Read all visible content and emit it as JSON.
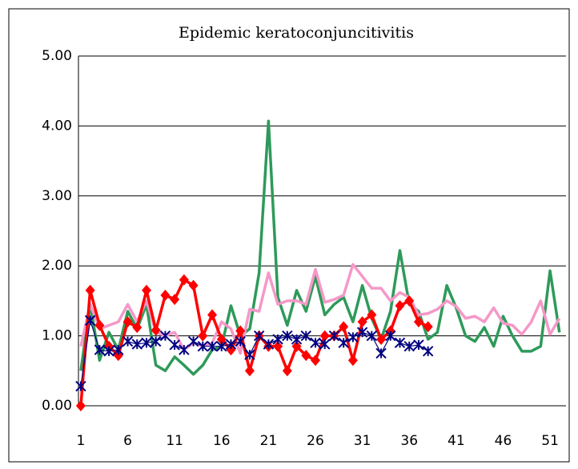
{
  "chart_data": {
    "type": "line",
    "title": "Epidemic keratoconjuncitivitis",
    "x": [
      1,
      2,
      3,
      4,
      5,
      6,
      7,
      8,
      9,
      10,
      11,
      12,
      13,
      14,
      15,
      16,
      17,
      18,
      19,
      20,
      21,
      22,
      23,
      24,
      25,
      26,
      27,
      28,
      29,
      30,
      31,
      32,
      33,
      34,
      35,
      36,
      37,
      38,
      39,
      40,
      41,
      42,
      43,
      44,
      45,
      46,
      47,
      48,
      49,
      50,
      51,
      52
    ],
    "xlim": [
      0.75,
      52.7
    ],
    "xticks": [
      1,
      6,
      11,
      16,
      21,
      26,
      31,
      36,
      41,
      46,
      51
    ],
    "ylim": [
      0,
      5
    ],
    "yticks": [
      {
        "value": 0,
        "label": "0.00"
      },
      {
        "value": 1,
        "label": "1.00"
      },
      {
        "value": 2,
        "label": "2.00"
      },
      {
        "value": 3,
        "label": "3.00"
      },
      {
        "value": 4,
        "label": "4.00"
      },
      {
        "value": 5,
        "label": "5.00"
      }
    ],
    "grid": true,
    "series": [
      {
        "color": "#2e9a5a",
        "marker": "none",
        "width": 3.5,
        "values": [
          0.5,
          1.45,
          0.65,
          1.05,
          0.8,
          1.35,
          1.1,
          1.45,
          0.58,
          0.5,
          0.7,
          0.58,
          0.45,
          0.58,
          0.8,
          0.85,
          1.43,
          1.0,
          1.1,
          1.9,
          4.07,
          1.55,
          1.15,
          1.65,
          1.35,
          1.85,
          1.3,
          1.45,
          1.55,
          1.2,
          1.72,
          1.25,
          0.95,
          1.35,
          2.22,
          1.45,
          1.35,
          0.95,
          1.05,
          1.72,
          1.4,
          1.0,
          0.92,
          1.12,
          0.85,
          1.28,
          1.0,
          0.78,
          0.78,
          0.85,
          1.93,
          1.05
        ]
      },
      {
        "color": "#f598c8",
        "marker": "none",
        "width": 3.5,
        "values": [
          0.85,
          1.45,
          1.1,
          1.15,
          1.2,
          1.45,
          1.2,
          1.5,
          1.05,
          1.0,
          1.05,
          0.8,
          0.9,
          0.85,
          0.9,
          1.2,
          1.1,
          0.75,
          1.38,
          1.35,
          1.9,
          1.45,
          1.5,
          1.5,
          1.45,
          1.95,
          1.48,
          1.52,
          1.58,
          2.02,
          1.85,
          1.68,
          1.68,
          1.5,
          1.62,
          1.55,
          1.3,
          1.32,
          1.38,
          1.5,
          1.42,
          1.25,
          1.28,
          1.2,
          1.4,
          1.18,
          1.15,
          1.02,
          1.2,
          1.5,
          1.02,
          1.25
        ]
      },
      {
        "color": "#ff0000",
        "marker": "diamond",
        "width": 3.5,
        "values": [
          0.0,
          1.65,
          1.15,
          0.85,
          0.72,
          1.2,
          1.12,
          1.65,
          1.08,
          1.58,
          1.52,
          1.8,
          1.72,
          1.0,
          1.3,
          0.95,
          0.8,
          1.07,
          0.5,
          1.0,
          0.85,
          0.85,
          0.5,
          0.85,
          0.72,
          0.65,
          1.0,
          1.0,
          1.13,
          0.65,
          1.2,
          1.3,
          0.95,
          1.07,
          1.43,
          1.5,
          1.2,
          1.13,
          null,
          null,
          null,
          null,
          null,
          null,
          null,
          null,
          null,
          null,
          null,
          null,
          null,
          null
        ]
      },
      {
        "color": "#000080",
        "marker": "asterisk",
        "width": 1.2,
        "values": [
          0.28,
          1.22,
          0.8,
          0.78,
          0.8,
          0.92,
          0.88,
          0.9,
          0.92,
          1.0,
          0.87,
          0.8,
          0.92,
          0.85,
          0.85,
          0.85,
          0.88,
          0.92,
          0.73,
          1.0,
          0.88,
          0.95,
          1.0,
          0.95,
          1.0,
          0.9,
          0.88,
          1.0,
          0.9,
          0.98,
          1.05,
          1.0,
          0.75,
          1.0,
          0.9,
          0.85,
          0.87,
          0.78,
          null,
          null,
          null,
          null,
          null,
          null,
          null,
          null,
          null,
          null,
          null,
          null,
          null,
          null
        ]
      }
    ]
  }
}
